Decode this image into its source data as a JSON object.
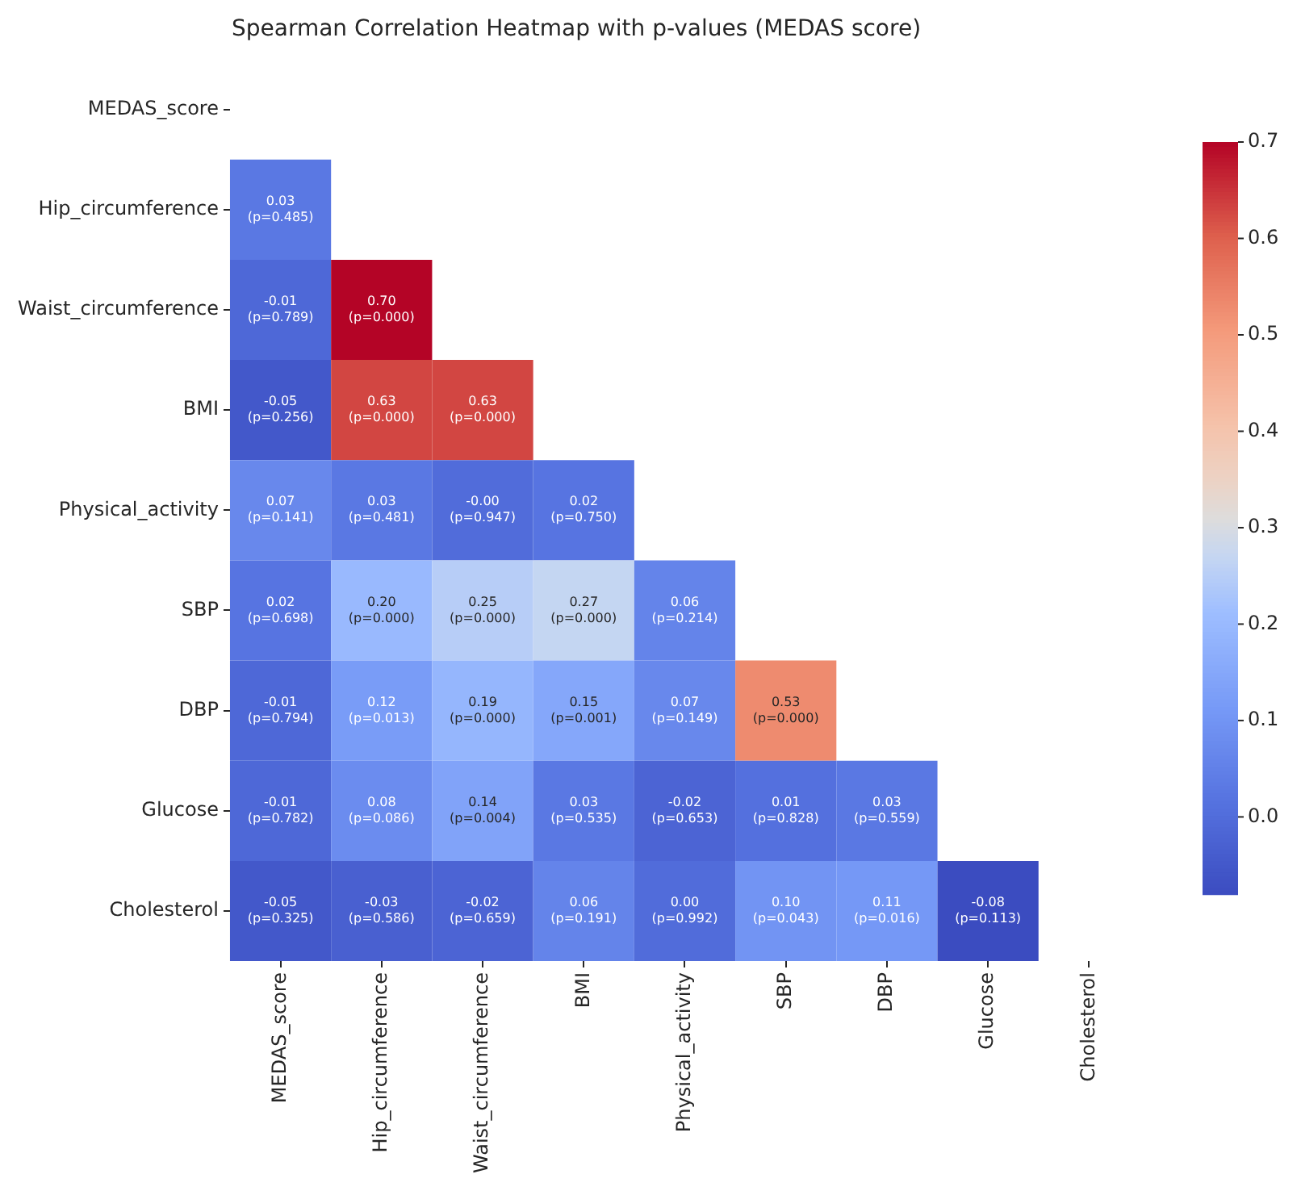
{
  "chart_data": {
    "type": "heatmap",
    "title": "Spearman Correlation Heatmap with p-values (MEDAS score)",
    "categories": [
      "MEDAS_score",
      "Hip_circumference",
      "Waist_circumference",
      "BMI",
      "Physical_activity",
      "SBP",
      "DBP",
      "Glucose",
      "Cholesterol"
    ],
    "y_categories": [
      "MEDAS_score",
      "Hip_circumference",
      "Waist_circumference",
      "BMI",
      "Physical_activity",
      "SBP",
      "DBP",
      "Glucose",
      "Cholesterol"
    ],
    "cells": [
      [
        null,
        null,
        null,
        null,
        null,
        null,
        null,
        null,
        null
      ],
      [
        0.03,
        null,
        null,
        null,
        null,
        null,
        null,
        null,
        null
      ],
      [
        -0.01,
        0.7,
        null,
        null,
        null,
        null,
        null,
        null,
        null
      ],
      [
        -0.05,
        0.63,
        0.63,
        null,
        null,
        null,
        null,
        null,
        null
      ],
      [
        0.07,
        0.03,
        0,
        0.02,
        null,
        null,
        null,
        null,
        null
      ],
      [
        0.02,
        0.2,
        0.25,
        0.27,
        0.06,
        null,
        null,
        null,
        null
      ],
      [
        -0.01,
        0.12,
        0.19,
        0.15,
        0.07,
        0.53,
        null,
        null,
        null
      ],
      [
        -0.01,
        0.08,
        0.14,
        0.03,
        -0.02,
        0.01,
        0.03,
        null,
        null
      ],
      [
        -0.05,
        -0.03,
        -0.02,
        0.06,
        0.0,
        0.1,
        0.11,
        -0.08,
        null
      ]
    ],
    "cell_labels": [
      [
        null,
        null,
        null,
        null,
        null,
        null,
        null,
        null,
        null
      ],
      [
        "0.03\n(p=0.485)",
        null,
        null,
        null,
        null,
        null,
        null,
        null,
        null
      ],
      [
        "-0.01\n(p=0.789)",
        "0.70\n(p=0.000)",
        null,
        null,
        null,
        null,
        null,
        null,
        null
      ],
      [
        "-0.05\n(p=0.256)",
        "0.63\n(p=0.000)",
        "0.63\n(p=0.000)",
        null,
        null,
        null,
        null,
        null,
        null
      ],
      [
        "0.07\n(p=0.141)",
        "0.03\n(p=0.481)",
        "-0.00\n(p=0.947)",
        "0.02\n(p=0.750)",
        null,
        null,
        null,
        null,
        null
      ],
      [
        "0.02\n(p=0.698)",
        "0.20\n(p=0.000)",
        "0.25\n(p=0.000)",
        "0.27\n(p=0.000)",
        "0.06\n(p=0.214)",
        null,
        null,
        null,
        null
      ],
      [
        "-0.01\n(p=0.794)",
        "0.12\n(p=0.013)",
        "0.19\n(p=0.000)",
        "0.15\n(p=0.001)",
        "0.07\n(p=0.149)",
        "0.53\n(p=0.000)",
        null,
        null,
        null
      ],
      [
        "-0.01\n(p=0.782)",
        "0.08\n(p=0.086)",
        "0.14\n(p=0.004)",
        "0.03\n(p=0.535)",
        "-0.02\n(p=0.653)",
        "0.01\n(p=0.828)",
        "0.03\n(p=0.559)",
        null,
        null
      ],
      [
        "-0.05\n(p=0.325)",
        "-0.03\n(p=0.586)",
        "-0.02\n(p=0.659)",
        "0.06\n(p=0.191)",
        "0.00\n(p=0.992)",
        "0.10\n(p=0.043)",
        "0.11\n(p=0.016)",
        "-0.08\n(p=0.113)",
        null
      ]
    ],
    "clim": [
      -0.08,
      0.7
    ],
    "cticks": [
      {
        "value": 0,
        "label": "0.0"
      },
      0.1,
      0.2,
      0.3,
      0.4,
      0.5,
      0.6,
      0.7
    ]
  }
}
